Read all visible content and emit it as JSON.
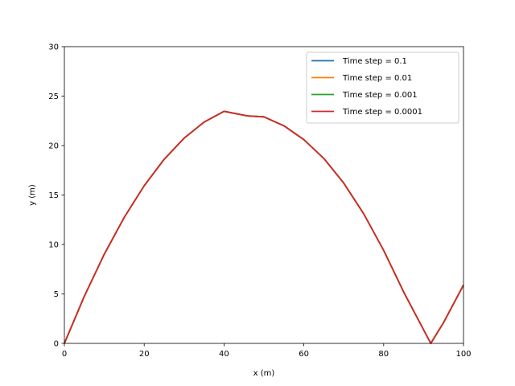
{
  "chart_data": {
    "type": "line",
    "title": "",
    "xlabel": "x (m)",
    "ylabel": "y (m)",
    "xlim": [
      0,
      100
    ],
    "ylim": [
      0,
      30
    ],
    "xticks": [
      "0",
      "20",
      "40",
      "60",
      "80",
      "100"
    ],
    "yticks": [
      "0",
      "5",
      "10",
      "15",
      "20",
      "25",
      "30"
    ],
    "grid": false,
    "legend_position": "top-right",
    "series": [
      {
        "name": "Time step = 0.1",
        "color": "#1f77b4",
        "x": [
          0,
          5,
          10,
          15,
          20,
          25,
          30,
          35,
          40,
          45.9,
          50,
          55,
          60,
          65,
          70,
          75,
          80,
          85,
          91.8,
          95,
          100
        ],
        "y": [
          0,
          4.77,
          9.02,
          12.74,
          15.94,
          18.61,
          20.75,
          22.37,
          23.46,
          23.0,
          22.9,
          22.0,
          20.6,
          18.7,
          16.2,
          13.1,
          9.4,
          5.2,
          0,
          2.1,
          5.9
        ]
      },
      {
        "name": "Time step = 0.01",
        "color": "#ff7f0e",
        "x": [
          0,
          5,
          10,
          15,
          20,
          25,
          30,
          35,
          40,
          45.9,
          50,
          55,
          60,
          65,
          70,
          75,
          80,
          85,
          91.8,
          95,
          100
        ],
        "y": [
          0,
          4.77,
          9.02,
          12.74,
          15.94,
          18.61,
          20.75,
          22.37,
          23.46,
          23.0,
          22.9,
          22.0,
          20.6,
          18.7,
          16.2,
          13.1,
          9.4,
          5.2,
          0,
          2.1,
          5.9
        ]
      },
      {
        "name": "Time step = 0.001",
        "color": "#2ca02c",
        "x": [
          0,
          5,
          10,
          15,
          20,
          25,
          30,
          35,
          40,
          45.9,
          50,
          55,
          60,
          65,
          70,
          75,
          80,
          85,
          91.8,
          95,
          100
        ],
        "y": [
          0,
          4.77,
          9.02,
          12.74,
          15.94,
          18.61,
          20.75,
          22.37,
          23.46,
          23.0,
          22.9,
          22.0,
          20.6,
          18.7,
          16.2,
          13.1,
          9.4,
          5.2,
          0,
          2.1,
          5.9
        ]
      },
      {
        "name": "Time step = 0.0001",
        "color": "#d62728",
        "x": [
          0,
          5,
          10,
          15,
          20,
          25,
          30,
          35,
          40,
          45.9,
          50,
          55,
          60,
          65,
          70,
          75,
          80,
          85,
          91.8,
          95,
          100
        ],
        "y": [
          0,
          4.77,
          9.02,
          12.74,
          15.94,
          18.61,
          20.75,
          22.37,
          23.46,
          23.0,
          22.9,
          22.0,
          20.6,
          18.7,
          16.2,
          13.1,
          9.4,
          5.2,
          0,
          2.1,
          5.9
        ]
      }
    ]
  }
}
